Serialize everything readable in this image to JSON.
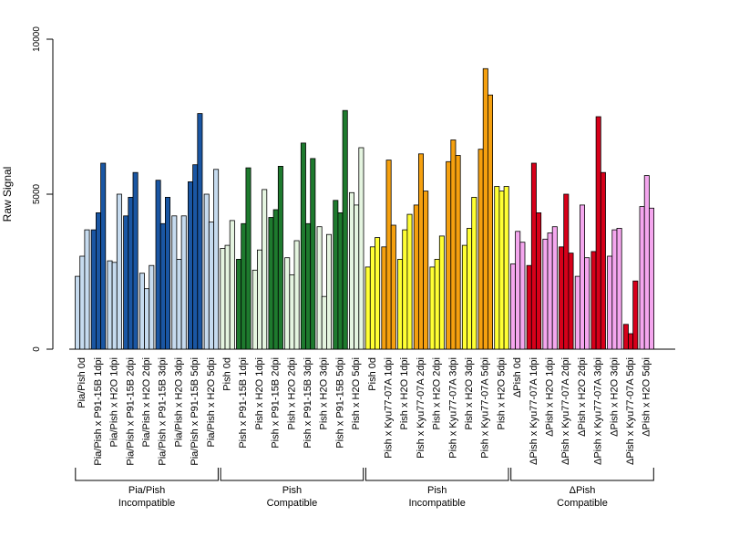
{
  "chart_data": {
    "type": "bar",
    "ylabel": "Raw Signal",
    "ylim": [
      0,
      10000
    ],
    "yticks": [
      0,
      5000,
      10000
    ],
    "colors": {
      "light_blue": "#c6dbef",
      "dark_blue": "#1a56a3",
      "light_green": "#e5f5e0",
      "dark_green": "#1e7a2e",
      "yellow": "#ffff33",
      "orange": "#f5a00f",
      "pink": "#f4a6ee",
      "red": "#d7001a"
    },
    "categories": [
      {
        "label": "Pia/Pish 0d",
        "color": "light_blue",
        "values": [
          2350,
          3000,
          3850
        ]
      },
      {
        "label": "Pia/Pish x P91-15B 1dpi",
        "color": "dark_blue",
        "values": [
          3850,
          4400,
          6000
        ]
      },
      {
        "label": "Pia/Pish x H2O 1dpi",
        "color": "light_blue",
        "values": [
          2850,
          2800,
          5000
        ]
      },
      {
        "label": "Pia/Pish x P91-15B 2dpi",
        "color": "dark_blue",
        "values": [
          4300,
          4900,
          5700
        ]
      },
      {
        "label": "Pia/Pish x H2O 2dpi",
        "color": "light_blue",
        "values": [
          2450,
          1950,
          2700
        ]
      },
      {
        "label": "Pia/Pish x P91-15B 3dpi",
        "color": "dark_blue",
        "values": [
          5450,
          4050,
          4900
        ]
      },
      {
        "label": "Pia/Pish x H2O 3dpi",
        "color": "light_blue",
        "values": [
          4300,
          2900,
          4300
        ]
      },
      {
        "label": "Pia/Pish x P91-15B 5dpi",
        "color": "dark_blue",
        "values": [
          5400,
          5950,
          7600
        ]
      },
      {
        "label": "Pia/Pish x H2O 5dpi",
        "color": "light_blue",
        "values": [
          5000,
          4100,
          5800
        ]
      },
      {
        "label": "Pish 0d",
        "color": "light_green",
        "values": [
          3250,
          3350,
          4150
        ]
      },
      {
        "label": "Pish x P91-15B 1dpi",
        "color": "dark_green",
        "values": [
          2900,
          4050,
          5850
        ]
      },
      {
        "label": "Pish x H2O 1dpi",
        "color": "light_green",
        "values": [
          2550,
          3200,
          5150
        ]
      },
      {
        "label": "Pish x P91-15B 2dpi",
        "color": "dark_green",
        "values": [
          4250,
          4500,
          5900
        ]
      },
      {
        "label": "Pish x H2O 2dpi",
        "color": "light_green",
        "values": [
          2950,
          2400,
          3500
        ]
      },
      {
        "label": "Pish x P91-15B 3dpi",
        "color": "dark_green",
        "values": [
          6650,
          4050,
          6150
        ]
      },
      {
        "label": "Pish x H2O 3dpi",
        "color": "light_green",
        "values": [
          3950,
          1700,
          3700
        ]
      },
      {
        "label": "Pish x P91-15B 5dpi",
        "color": "dark_green",
        "values": [
          4800,
          4400,
          7700
        ]
      },
      {
        "label": "Pish x H2O 5dpi",
        "color": "light_green",
        "values": [
          5050,
          4650,
          6500
        ]
      },
      {
        "label": "Pish 0d",
        "color": "yellow",
        "values": [
          2650,
          3300,
          3600
        ]
      },
      {
        "label": "Pish x Kyu77-07A 1dpi",
        "color": "orange",
        "values": [
          3300,
          6100,
          4000
        ]
      },
      {
        "label": "Pish x H2O 1dpi",
        "color": "yellow",
        "values": [
          2900,
          3850,
          4350
        ]
      },
      {
        "label": "Pish x Kyu77-07A 2dpi",
        "color": "orange",
        "values": [
          4650,
          6300,
          5100
        ]
      },
      {
        "label": "Pish x H2O 2dpi",
        "color": "yellow",
        "values": [
          2650,
          2900,
          3650
        ]
      },
      {
        "label": "Pish x Kyu77-07A 3dpi",
        "color": "orange",
        "values": [
          6050,
          6750,
          6250
        ]
      },
      {
        "label": "Pish x H2O 3dpi",
        "color": "yellow",
        "values": [
          3350,
          3900,
          4900
        ]
      },
      {
        "label": "Pish x Kyu77-07A 5dpi",
        "color": "orange",
        "values": [
          6450,
          9050,
          8200
        ]
      },
      {
        "label": "Pish x H2O 5dpi",
        "color": "yellow",
        "values": [
          5250,
          5100,
          5250
        ]
      },
      {
        "label": "ΔPish 0d",
        "color": "pink",
        "values": [
          2750,
          3800,
          3450
        ]
      },
      {
        "label": "ΔPish x Kyu77-07A 1dpi",
        "color": "red",
        "values": [
          2700,
          6000,
          4400
        ]
      },
      {
        "label": "ΔPish x H2O 1dpi",
        "color": "pink",
        "values": [
          3550,
          3750,
          3950
        ]
      },
      {
        "label": "ΔPish x Kyu77-07A 2dpi",
        "color": "red",
        "values": [
          3300,
          5000,
          3100
        ]
      },
      {
        "label": "ΔPish x H2O 2dpi",
        "color": "pink",
        "values": [
          2350,
          4650,
          2950
        ]
      },
      {
        "label": "ΔPish x Kyu77-07A 3dpi",
        "color": "red",
        "values": [
          3150,
          7500,
          5700
        ]
      },
      {
        "label": "ΔPish x H2O 3dpi",
        "color": "pink",
        "values": [
          3000,
          3850,
          3900
        ]
      },
      {
        "label": "ΔPish x Kyu77-07A 5dpi",
        "color": "red",
        "values": [
          800,
          500,
          2200
        ]
      },
      {
        "label": "ΔPish x H2O 5dpi",
        "color": "pink",
        "values": [
          4600,
          5600,
          4550
        ]
      }
    ],
    "groups": [
      {
        "line1": "Pia/Pish",
        "line2": "Incompatible",
        "start": 0,
        "end": 8
      },
      {
        "line1": "Pish",
        "line2": "Compatible",
        "start": 9,
        "end": 17
      },
      {
        "line1": "Pish",
        "line2": "Incompatible",
        "start": 18,
        "end": 26
      },
      {
        "line1": "ΔPish",
        "line2": "Compatible",
        "start": 27,
        "end": 35
      }
    ]
  }
}
